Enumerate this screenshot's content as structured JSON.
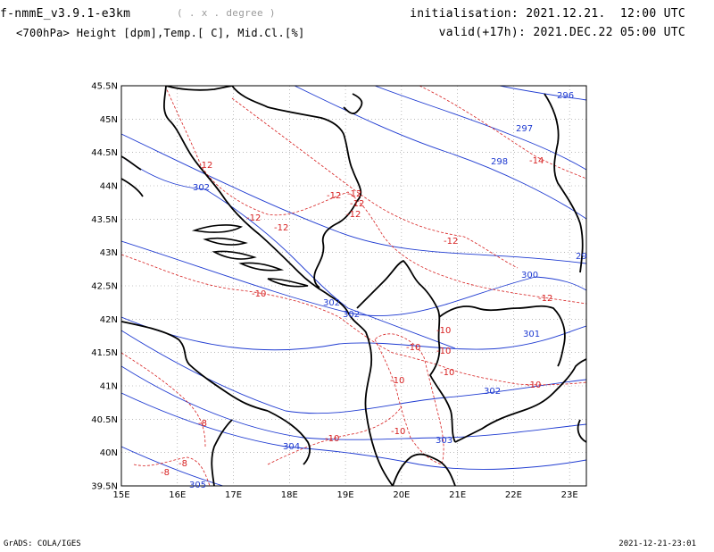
{
  "header": {
    "model": "f-nmmE_v3.9.1-e3km",
    "units": "( . x . degree )",
    "subtitle": "<700hPa> Height [dpm],Temp.[ C], Mid.Cl.[%]",
    "init_label": "initialisation:",
    "init_value": "2021.12.21.  12:00 UTC",
    "valid_label": "valid(+17h):",
    "valid_value": "2021.DEC.22 05:00 UTC"
  },
  "footer": {
    "left": "GrADS: COLA/IGES",
    "right": "2021-12-21-23:01"
  },
  "axes": {
    "x_ticks": [
      "15E",
      "16E",
      "17E",
      "18E",
      "19E",
      "20E",
      "21E",
      "22E",
      "23E"
    ],
    "y_ticks": [
      "45.5N",
      "45N",
      "44.5N",
      "44N",
      "43.5N",
      "43N",
      "42.5N",
      "42N",
      "41.5N",
      "41N",
      "40.5N",
      "40N",
      "39.5N"
    ],
    "lon_range": [
      15,
      23.3
    ],
    "lat_range": [
      39.5,
      45.5
    ],
    "grid": true
  },
  "colors": {
    "height": "#1f3bd1",
    "temp": "#d72020",
    "coast": "#000000",
    "grid": "#8f8f8f"
  },
  "height_labels": [
    "296",
    "297",
    "298",
    "29",
    "300",
    "301",
    "302",
    "302",
    "302",
    "302",
    "303",
    "304",
    "305"
  ],
  "temp_labels": [
    "-12",
    "-12",
    "-12",
    "-12",
    "-12",
    "-12",
    "-12",
    "-12",
    "-12",
    "-14",
    "-10",
    "-10",
    "-10",
    "-10",
    "-10",
    "-10",
    "-10",
    "-10",
    "-10",
    "-8",
    "-8",
    "-8"
  ]
}
